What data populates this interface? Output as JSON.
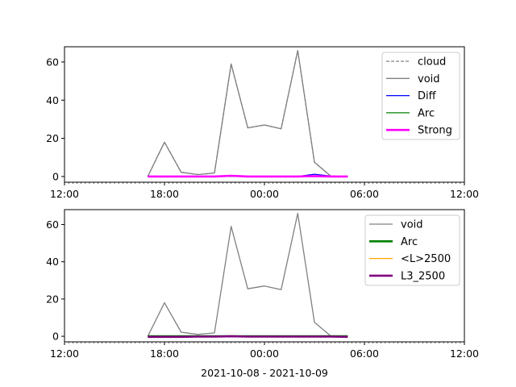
{
  "figure_xlabel": "2021-10-08 - 2021-10-09",
  "chart_data": [
    {
      "type": "line",
      "x_tick_labels": [
        "12:00",
        "18:00",
        "00:00",
        "06:00",
        "12:00"
      ],
      "x_tick_hours": [
        12,
        18,
        24,
        30,
        36
      ],
      "xlim_hours": [
        12,
        36
      ],
      "ylim": [
        -3,
        68
      ],
      "y_ticks": [
        0,
        20,
        40,
        60
      ],
      "legend_placement": "upper right",
      "x_hours": [
        17,
        18,
        19,
        20,
        21,
        22,
        23,
        24,
        25,
        26,
        27,
        28,
        29
      ],
      "series": [
        {
          "name": "cloud",
          "color": "#808080",
          "dashed": true,
          "width": 1,
          "values": [
            0,
            18,
            2.2,
            1,
            1.8,
            59,
            25.5,
            27,
            25,
            66,
            7.5,
            0,
            0
          ]
        },
        {
          "name": "void",
          "color": "#808080",
          "dashed": false,
          "width": 1,
          "values": [
            0,
            18,
            2.2,
            1,
            1.8,
            59,
            25.5,
            27,
            25,
            66,
            7.5,
            0,
            0
          ]
        },
        {
          "name": "Diff",
          "color": "#0000ff",
          "dashed": false,
          "width": 1,
          "values": [
            0,
            0,
            0,
            0,
            0,
            0.3,
            0,
            0,
            0,
            0,
            1.2,
            0.2,
            0
          ]
        },
        {
          "name": "Arc",
          "color": "#008000",
          "dashed": false,
          "width": 1,
          "values": [
            0,
            0,
            0,
            0,
            0,
            0,
            0,
            0,
            0,
            0,
            0,
            0,
            0
          ]
        },
        {
          "name": "Strong",
          "color": "#ff00ff",
          "dashed": false,
          "width": 2,
          "values": [
            0,
            0,
            0,
            0,
            0,
            0.4,
            0,
            0,
            0,
            0,
            0.2,
            0,
            0
          ]
        }
      ]
    },
    {
      "type": "line",
      "x_tick_labels": [
        "12:00",
        "18:00",
        "00:00",
        "06:00",
        "12:00"
      ],
      "x_tick_hours": [
        12,
        18,
        24,
        30,
        36
      ],
      "xlim_hours": [
        12,
        36
      ],
      "ylim": [
        -3,
        68
      ],
      "y_ticks": [
        0,
        20,
        40,
        60
      ],
      "legend_placement": "upper right",
      "x_hours": [
        17,
        18,
        19,
        20,
        21,
        22,
        23,
        24,
        25,
        26,
        27,
        28,
        29
      ],
      "series": [
        {
          "name": "void",
          "color": "#808080",
          "dashed": false,
          "width": 1,
          "values": [
            0,
            18,
            2.2,
            1,
            1.8,
            59,
            25.5,
            27,
            25,
            66,
            7.5,
            0,
            0
          ]
        },
        {
          "name": "Arc",
          "color": "#008000",
          "dashed": false,
          "width": 2,
          "values": [
            0,
            0,
            0,
            0,
            0,
            0,
            0,
            0,
            0,
            0,
            0,
            0,
            0
          ]
        },
        {
          "name": "<L>2500",
          "color": "#ffa500",
          "dashed": false,
          "width": 1,
          "values": [
            0,
            0,
            0,
            0,
            0,
            0.2,
            0,
            0,
            0,
            0,
            0,
            0,
            0
          ]
        },
        {
          "name": "L3_2500",
          "color": "#800080",
          "dashed": false,
          "width": 2,
          "values": [
            -0.3,
            -0.3,
            -0.3,
            -0.2,
            -0.2,
            0,
            -0.2,
            -0.2,
            -0.2,
            -0.2,
            -0.2,
            -0.2,
            -0.3
          ]
        }
      ]
    }
  ]
}
